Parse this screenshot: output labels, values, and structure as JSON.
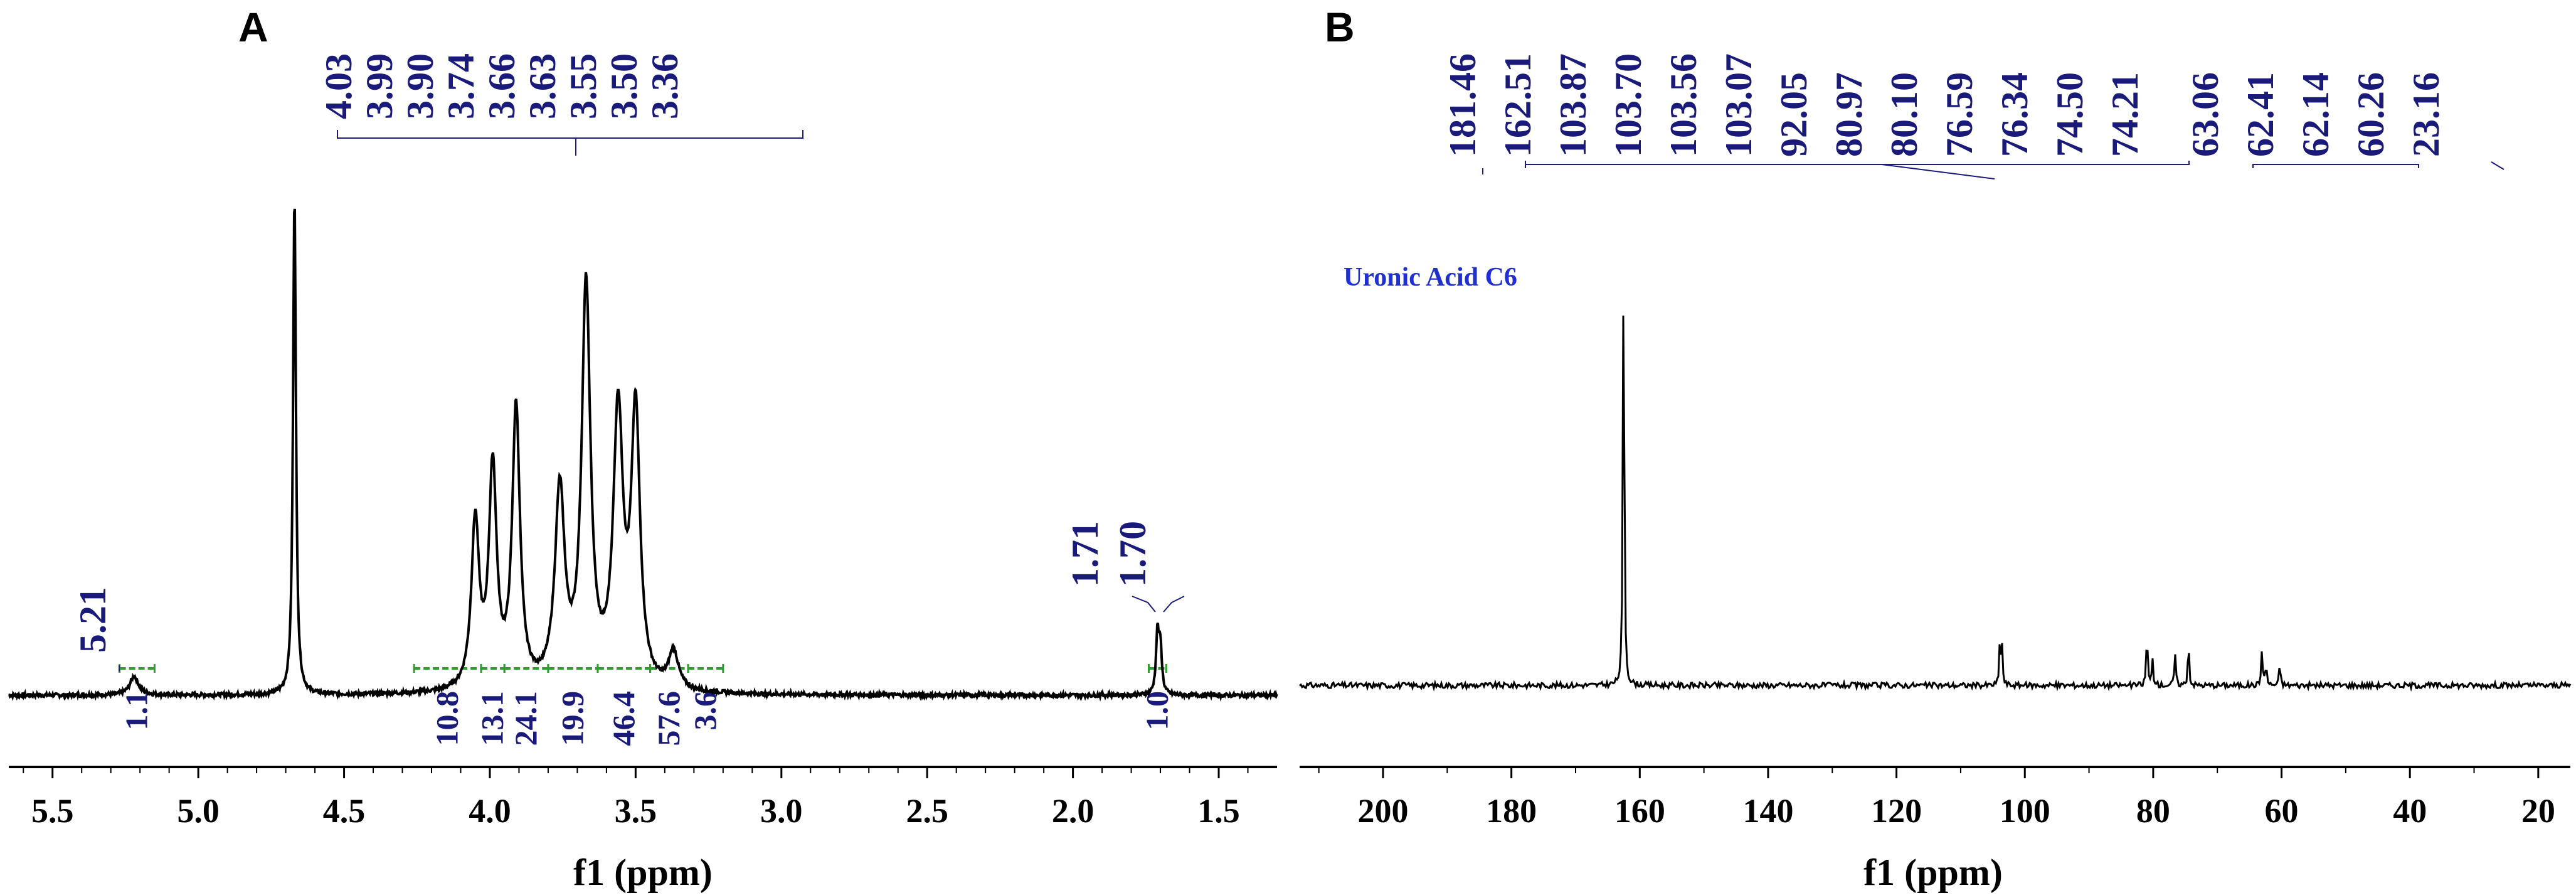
{
  "colors": {
    "label": "#1a1a7a",
    "integral": "#2e9e2e",
    "spectrum": "#000000",
    "annotation": "#1f2fd0"
  },
  "chart_data": [
    {
      "type": "line",
      "panel": "A",
      "xlabel": "f1 (ppm)",
      "xlim": [
        5.65,
        1.3
      ],
      "x_ticks": [
        5.5,
        5.0,
        4.5,
        4.0,
        3.5,
        3.0,
        2.5,
        2.0,
        1.5
      ],
      "x_tick_labels": [
        "5.5",
        "5.0",
        "4.5",
        "4.0",
        "3.5",
        "3.0",
        "2.5",
        "2.0",
        "1.5"
      ],
      "peak_labels": [
        "5.21",
        "4.03",
        "3.99",
        "3.90",
        "3.74",
        "3.66",
        "3.63",
        "3.55",
        "3.50",
        "3.36",
        "1.71",
        "1.70"
      ],
      "integrals": [
        {
          "label": "1.1",
          "from": 5.27,
          "to": 5.15
        },
        {
          "label": "10.8",
          "from": 4.26,
          "to": 4.03
        },
        {
          "label": "13.1",
          "from": 4.03,
          "to": 3.95
        },
        {
          "label": "24.1",
          "from": 3.95,
          "to": 3.8
        },
        {
          "label": "19.9",
          "from": 3.8,
          "to": 3.63
        },
        {
          "label": "46.4",
          "from": 3.63,
          "to": 3.45
        },
        {
          "label": "57.6",
          "from": 3.45,
          "to": 3.32
        },
        {
          "label": "3.6",
          "from": 3.32,
          "to": 3.2
        },
        {
          "label": "1.0",
          "from": 1.74,
          "to": 1.68
        }
      ],
      "peaks": [
        {
          "ppm": 5.22,
          "height": 0.05,
          "width": 0.018
        },
        {
          "ppm": 4.67,
          "height": 1.33,
          "width": 0.006
        },
        {
          "ppm": 4.05,
          "height": 0.44,
          "width": 0.016
        },
        {
          "ppm": 3.99,
          "height": 0.58,
          "width": 0.016
        },
        {
          "ppm": 3.91,
          "height": 0.74,
          "width": 0.016
        },
        {
          "ppm": 3.76,
          "height": 0.52,
          "width": 0.02
        },
        {
          "ppm": 3.67,
          "height": 1.06,
          "width": 0.018
        },
        {
          "ppm": 3.56,
          "height": 0.72,
          "width": 0.02
        },
        {
          "ppm": 3.5,
          "height": 0.72,
          "width": 0.018
        },
        {
          "ppm": 3.37,
          "height": 0.1,
          "width": 0.02
        },
        {
          "ppm": 1.71,
          "height": 0.16,
          "width": 0.006
        },
        {
          "ppm": 1.7,
          "height": 0.12,
          "width": 0.006
        }
      ]
    },
    {
      "type": "line",
      "panel": "B",
      "xlabel": "f1 (ppm)",
      "xlim": [
        213,
        15
      ],
      "x_ticks": [
        200,
        180,
        160,
        140,
        120,
        100,
        80,
        60,
        40,
        20
      ],
      "x_tick_labels": [
        "200",
        "180",
        "160",
        "140",
        "120",
        "100",
        "80",
        "60",
        "40",
        "20"
      ],
      "peak_labels": [
        "181.46",
        "162.51",
        "103.87",
        "103.70",
        "103.56",
        "103.07",
        "92.05",
        "80.97",
        "80.10",
        "76.59",
        "76.34",
        "74.50",
        "74.21",
        "63.06",
        "62.41",
        "62.14",
        "60.26",
        "23.16"
      ],
      "annotation": "Uronic Acid C6",
      "peaks": [
        {
          "ppm": 162.51,
          "height": 1.0
        },
        {
          "ppm": 103.87,
          "height": 0.1
        },
        {
          "ppm": 103.56,
          "height": 0.08
        },
        {
          "ppm": 80.97,
          "height": 0.12
        },
        {
          "ppm": 80.1,
          "height": 0.06
        },
        {
          "ppm": 76.59,
          "height": 0.07
        },
        {
          "ppm": 74.5,
          "height": 0.1
        },
        {
          "ppm": 63.06,
          "height": 0.08
        },
        {
          "ppm": 62.41,
          "height": 0.05
        },
        {
          "ppm": 60.26,
          "height": 0.05
        }
      ]
    }
  ]
}
